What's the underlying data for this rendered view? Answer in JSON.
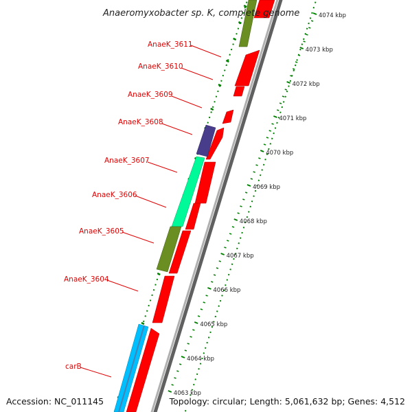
{
  "title": "Anaeromyxobacter sp. K, complete genome",
  "footer": {
    "accession": "Accession: NC_011145",
    "topology": "Topology: circular; Length: 5,061,632 bp; Genes: 4,512"
  },
  "colors": {
    "red_gene": "#ff0000",
    "olive_gene": "#6b8e23",
    "purple_gene": "#483d8b",
    "green_gene": "#00fa9a",
    "cyan_gene": "#00bfff",
    "backbone": "#808080",
    "ticks": "#008000",
    "labels": "#e00000"
  },
  "ruler": {
    "unit": "kbp",
    "ticks": [
      {
        "pos": 4074,
        "label": "4074 kbp"
      },
      {
        "pos": 4073,
        "label": "4073 kbp"
      },
      {
        "pos": 4072,
        "label": "4072 kbp"
      },
      {
        "pos": 4071,
        "label": "4071 kbp"
      },
      {
        "pos": 4070,
        "label": "4070 kbp"
      },
      {
        "pos": 4069,
        "label": "4069 kbp"
      },
      {
        "pos": 4068,
        "label": "4068 kbp"
      },
      {
        "pos": 4067,
        "label": "4067 kbp"
      },
      {
        "pos": 4066,
        "label": "4066 kbp"
      },
      {
        "pos": 4065,
        "label": "4065 kbp"
      },
      {
        "pos": 4064,
        "label": "4064 kbp"
      },
      {
        "pos": 4063,
        "label": "4063 kbp"
      }
    ]
  },
  "genes": [
    {
      "label": "AnaeK_3611"
    },
    {
      "label": "AnaeK_3610"
    },
    {
      "label": "AnaeK_3609"
    },
    {
      "label": "AnaeK_3608"
    },
    {
      "label": "AnaeK_3607"
    },
    {
      "label": "AnaeK_3606"
    },
    {
      "label": "AnaeK_3605"
    },
    {
      "label": "AnaeK_3604"
    },
    {
      "label": "carB"
    }
  ]
}
